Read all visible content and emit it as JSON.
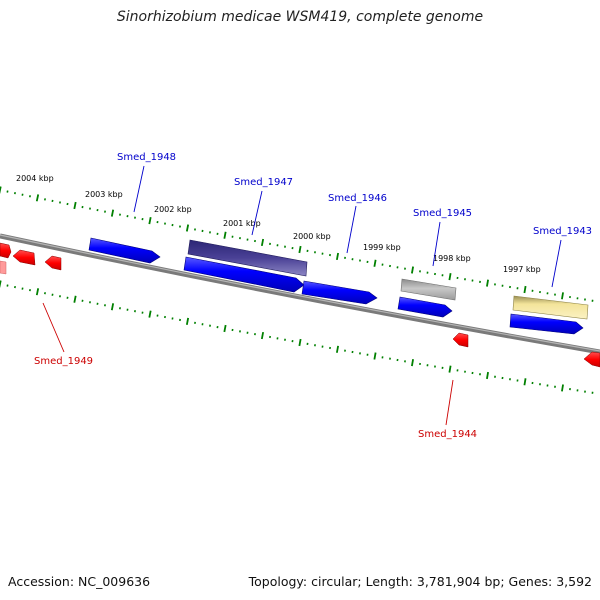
{
  "title": "Sinorhizobium medicae WSM419, complete genome",
  "footer": {
    "accession": "Accession: NC_009636",
    "summary": "Topology: circular; Length: 3,781,904 bp; Genes: 3,592"
  },
  "colors": {
    "forward": "#0000ff",
    "reverse": "#ff0000",
    "backbone": "#808080",
    "ticks": "#008000",
    "forward_label": "#0000cc",
    "reverse_label": "#cc0000"
  },
  "scale_labels": [
    "2004 kbp",
    "2003 kbp",
    "2002 kbp",
    "2001 kbp",
    "2000 kbp",
    "1999 kbp",
    "1998 kbp",
    "1997 kbp"
  ],
  "forward_gene_labels": [
    "Smed_1948",
    "Smed_1947",
    "Smed_1946",
    "Smed_1945",
    "Smed_1943"
  ],
  "reverse_gene_labels": [
    "Smed_1949",
    "Smed_1944"
  ]
}
